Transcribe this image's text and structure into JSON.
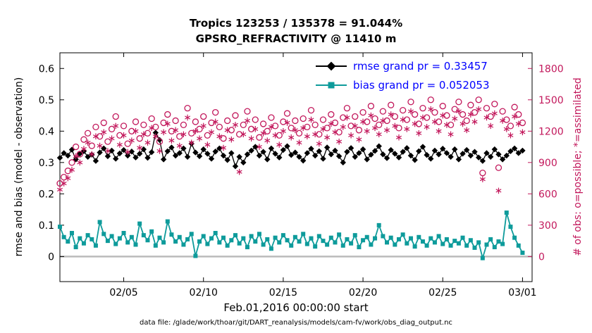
{
  "titles": {
    "line1": "Tropics 123253 / 135378 = 91.044%",
    "line2": "GPSRO_REFRACTIVITY @ 11410 m"
  },
  "axes": {
    "xlabel": "Feb.01,2016 00:00:00 start",
    "ylabel_left": "rmse and bias (model - observation)",
    "ylabel_right": "# of obs: o=possible; *=assimilated"
  },
  "caption": "data file: /glade/work/thoar/git/DART_reanalysis/models/cam-fv/work/obs_diag_output.nc",
  "colors": {
    "rmse": "#000000",
    "bias": "#0e9b9b",
    "obs": "#c2175b",
    "legend_text": "#0000ff",
    "zero_line": "#bbbbbb",
    "axis": "#000000"
  },
  "legend": {
    "items": [
      {
        "label": "rmse grand pr = 0.33457",
        "marker": "diamond",
        "color": "#000000"
      },
      {
        "label": "bias grand pr = 0.052053",
        "marker": "square",
        "color": "#0e9b9b"
      }
    ]
  },
  "chart_data": {
    "type": "line",
    "title": "Tropics 123253 / 135378 = 91.044% | GPSRO_REFRACTIVITY @ 11410 m",
    "xlabel": "Feb.01,2016 00:00:00 start",
    "ylabel_left": "rmse and bias (model - observation)",
    "ylabel_right": "# of obs: o=possible; *=assimilated",
    "x_unit": "days since Feb 01, 2016 00:00",
    "x_start_days": 0,
    "x_step_days": 0.25,
    "xlim": [
      0,
      29.6
    ],
    "ylim_left": [
      -0.08,
      0.65
    ],
    "ylim_right": [
      -240,
      1950
    ],
    "grid": false,
    "legend_position": "top-right-inside",
    "x_ticks": [
      {
        "day": 4,
        "label": "02/05"
      },
      {
        "day": 9,
        "label": "02/10"
      },
      {
        "day": 14,
        "label": "02/15"
      },
      {
        "day": 19,
        "label": "02/20"
      },
      {
        "day": 24,
        "label": "02/25"
      },
      {
        "day": 29,
        "label": "03/01"
      }
    ],
    "y_ticks_left": [
      {
        "v": 0,
        "label": "0"
      },
      {
        "v": 0.1,
        "label": "0.1"
      },
      {
        "v": 0.2,
        "label": "0.2"
      },
      {
        "v": 0.3,
        "label": "0.3"
      },
      {
        "v": 0.4,
        "label": "0.4"
      },
      {
        "v": 0.5,
        "label": "0.5"
      },
      {
        "v": 0.6,
        "label": "0.6"
      }
    ],
    "y_ticks_right": [
      {
        "v": 0,
        "label": "0"
      },
      {
        "v": 300,
        "label": "300"
      },
      {
        "v": 600,
        "label": "600"
      },
      {
        "v": 900,
        "label": "900"
      },
      {
        "v": 1200,
        "label": "1200"
      },
      {
        "v": 1500,
        "label": "1500"
      },
      {
        "v": 1800,
        "label": "1800"
      }
    ],
    "series": [
      {
        "name": "rmse",
        "axis": "left",
        "line": true,
        "line_width": 1.3,
        "marker": "diamond",
        "color": "#000000",
        "grand_value": 0.33457,
        "values": [
          0.315,
          0.33,
          0.322,
          0.341,
          0.31,
          0.328,
          0.336,
          0.318,
          0.325,
          0.305,
          0.332,
          0.345,
          0.32,
          0.338,
          0.312,
          0.329,
          0.34,
          0.322,
          0.335,
          0.316,
          0.328,
          0.342,
          0.315,
          0.333,
          0.395,
          0.372,
          0.31,
          0.336,
          0.348,
          0.322,
          0.33,
          0.345,
          0.318,
          0.36,
          0.332,
          0.32,
          0.342,
          0.328,
          0.312,
          0.335,
          0.345,
          0.322,
          0.308,
          0.33,
          0.288,
          0.318,
          0.3,
          0.326,
          0.338,
          0.35,
          0.322,
          0.334,
          0.31,
          0.345,
          0.328,
          0.316,
          0.34,
          0.352,
          0.324,
          0.332,
          0.318,
          0.306,
          0.33,
          0.344,
          0.322,
          0.336,
          0.312,
          0.348,
          0.326,
          0.338,
          0.32,
          0.3,
          0.334,
          0.346,
          0.318,
          0.33,
          0.342,
          0.31,
          0.325,
          0.337,
          0.352,
          0.326,
          0.314,
          0.34,
          0.328,
          0.316,
          0.334,
          0.346,
          0.322,
          0.308,
          0.336,
          0.35,
          0.324,
          0.312,
          0.338,
          0.326,
          0.344,
          0.33,
          0.318,
          0.342,
          0.31,
          0.328,
          0.34,
          0.322,
          0.334,
          0.316,
          0.305,
          0.33,
          0.318,
          0.342,
          0.326,
          0.31,
          0.322,
          0.336,
          0.345,
          0.33,
          0.338
        ]
      },
      {
        "name": "bias",
        "axis": "left",
        "line": true,
        "line_width": 1.8,
        "marker": "square",
        "color": "#0e9b9b",
        "grand_value": 0.052053,
        "values": [
          0.095,
          0.062,
          0.048,
          0.075,
          0.03,
          0.058,
          0.042,
          0.068,
          0.055,
          0.035,
          0.11,
          0.072,
          0.05,
          0.065,
          0.04,
          0.058,
          0.075,
          0.045,
          0.062,
          0.038,
          0.105,
          0.068,
          0.052,
          0.08,
          0.035,
          0.06,
          0.045,
          0.112,
          0.07,
          0.048,
          0.062,
          0.038,
          0.055,
          0.072,
          0.002,
          0.048,
          0.065,
          0.04,
          0.058,
          0.075,
          0.045,
          0.06,
          0.035,
          0.052,
          0.068,
          0.042,
          0.058,
          0.03,
          0.065,
          0.048,
          0.072,
          0.038,
          0.055,
          0.025,
          0.06,
          0.045,
          0.068,
          0.052,
          0.035,
          0.062,
          0.048,
          0.072,
          0.04,
          0.058,
          0.032,
          0.065,
          0.05,
          0.038,
          0.06,
          0.045,
          0.07,
          0.035,
          0.055,
          0.042,
          0.068,
          0.03,
          0.052,
          0.062,
          0.038,
          0.058,
          0.1,
          0.065,
          0.045,
          0.06,
          0.038,
          0.055,
          0.07,
          0.042,
          0.058,
          0.032,
          0.062,
          0.048,
          0.035,
          0.058,
          0.045,
          0.065,
          0.04,
          0.055,
          0.035,
          0.05,
          0.042,
          0.06,
          0.035,
          0.052,
          0.028,
          0.045,
          -0.005,
          0.038,
          0.055,
          0.03,
          0.048,
          0.04,
          0.14,
          0.095,
          0.06,
          0.035,
          0.012
        ]
      },
      {
        "name": "possible",
        "axis": "right",
        "line": false,
        "marker": "circle-open",
        "color": "#c2175b",
        "values": [
          700,
          760,
          820,
          900,
          1050,
          980,
          1120,
          1180,
          1060,
          1240,
          1150,
          1280,
          1100,
          1220,
          1340,
          1160,
          1250,
          1080,
          1200,
          1290,
          1130,
          1260,
          1180,
          1320,
          1240,
          1100,
          1280,
          1360,
          1200,
          1300,
          1150,
          1260,
          1420,
          1180,
          1290,
          1220,
          1340,
          1160,
          1280,
          1380,
          1240,
          1130,
          1300,
          1210,
          1350,
          1170,
          1260,
          1390,
          1220,
          1310,
          1140,
          1270,
          1200,
          1330,
          1250,
          1160,
          1290,
          1370,
          1230,
          1300,
          1180,
          1320,
          1240,
          1400,
          1260,
          1170,
          1310,
          1230,
          1360,
          1280,
          1190,
          1330,
          1420,
          1250,
          1340,
          1210,
          1380,
          1290,
          1440,
          1320,
          1260,
          1390,
          1300,
          1450,
          1340,
          1230,
          1400,
          1310,
          1480,
          1360,
          1270,
          1420,
          1330,
          1500,
          1380,
          1290,
          1440,
          1350,
          1260,
          1410,
          1480,
          1360,
          1300,
          1450,
          1380,
          1500,
          800,
          1420,
          1340,
          1460,
          850,
          1390,
          1310,
          1250,
          1430,
          1360,
          1280
        ]
      },
      {
        "name": "assimilated",
        "axis": "right",
        "line": false,
        "marker": "asterisk",
        "color": "#c2175b",
        "values": [
          640,
          700,
          750,
          830,
          960,
          900,
          1030,
          1090,
          980,
          1150,
          1060,
          1190,
          1010,
          1130,
          1250,
          1070,
          1160,
          1000,
          1110,
          1200,
          1040,
          1170,
          1090,
          1230,
          1150,
          1010,
          1190,
          1270,
          1110,
          1210,
          1060,
          1170,
          1330,
          1090,
          1200,
          1130,
          1250,
          1070,
          1190,
          1290,
          1150,
          1040,
          1210,
          1120,
          1260,
          810,
          1170,
          1300,
          1130,
          1220,
          1050,
          1180,
          1110,
          1240,
          1160,
          1070,
          1200,
          1280,
          1140,
          1210,
          1090,
          1230,
          1150,
          1310,
          1170,
          1080,
          1220,
          1140,
          1270,
          1190,
          1100,
          1240,
          1330,
          1160,
          1250,
          1120,
          1290,
          1200,
          1350,
          1230,
          1170,
          1300,
          1210,
          1360,
          1250,
          1140,
          1310,
          1220,
          1390,
          1270,
          1180,
          1330,
          1240,
          1410,
          1290,
          1200,
          1350,
          1260,
          1170,
          1320,
          1390,
          1270,
          1210,
          1360,
          1290,
          1410,
          740,
          1330,
          1250,
          1370,
          630,
          1300,
          1220,
          1160,
          1340,
          1270,
          1190
        ]
      }
    ]
  }
}
